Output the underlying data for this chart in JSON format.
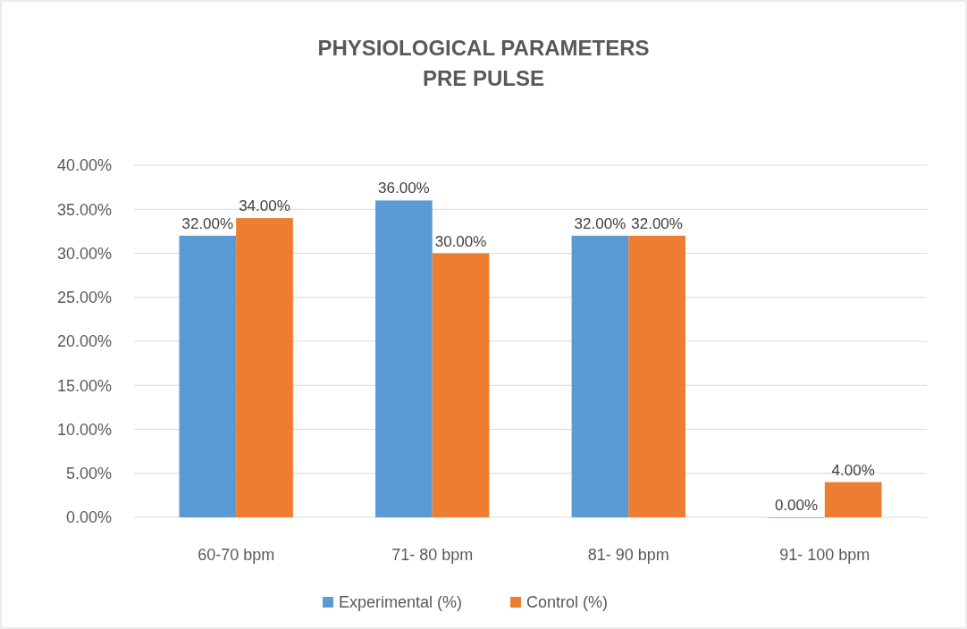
{
  "chart_data": {
    "type": "bar",
    "title": "PHYSIOLOGICAL PARAMETERS\nPRE PULSE",
    "categories": [
      "60-70 bpm",
      "71- 80 bpm",
      "81- 90 bpm",
      "91- 100 bpm"
    ],
    "series": [
      {
        "name": "Experimental (%)",
        "color": "#5b9bd5",
        "values": [
          32,
          36,
          32,
          0
        ],
        "value_labels": [
          "32.00%",
          "36.00%",
          "32.00%",
          "0.00%"
        ]
      },
      {
        "name": "Control (%)",
        "color": "#ed7d31",
        "values": [
          34,
          30,
          32,
          4
        ],
        "value_labels": [
          "34.00%",
          "30.00%",
          "32.00%",
          "4.00%"
        ]
      }
    ],
    "ylim": [
      0,
      40
    ],
    "yticks": [
      {
        "value": 0,
        "label": "0.00%"
      },
      {
        "value": 5,
        "label": "5.00%"
      },
      {
        "value": 10,
        "label": "10.00%"
      },
      {
        "value": 15,
        "label": "15.00%"
      },
      {
        "value": 20,
        "label": "20.00%"
      },
      {
        "value": 25,
        "label": "25.00%"
      },
      {
        "value": 30,
        "label": "30.00%"
      },
      {
        "value": 35,
        "label": "35.00%"
      },
      {
        "value": 40,
        "label": "40.00%"
      }
    ],
    "grid": "y",
    "legend": "bottom"
  }
}
